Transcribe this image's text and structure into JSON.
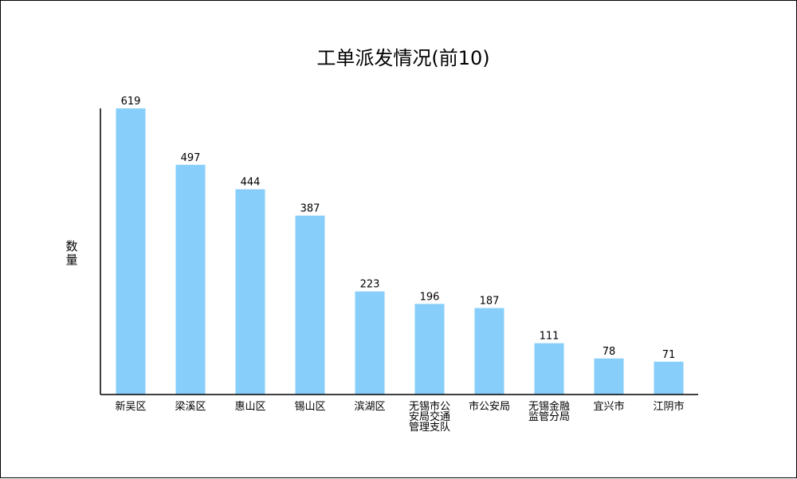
{
  "chart_data": {
    "type": "bar",
    "title": "工单派发情况(前10)",
    "ylabel": "数量",
    "xlabel": "",
    "categories": [
      "新吴区",
      "梁溪区",
      "惠山区",
      "锡山区",
      "滨湖区",
      "无锡市公安局交通管理支队",
      "市公安局",
      "无锡金融监管分局",
      "宜兴市",
      "江阴市"
    ],
    "category_lines": [
      [
        "新吴区"
      ],
      [
        "梁溪区"
      ],
      [
        "惠山区"
      ],
      [
        "锡山区"
      ],
      [
        "滨湖区"
      ],
      [
        "无锡市公",
        "安局交通",
        "管理支队"
      ],
      [
        "市公安局"
      ],
      [
        "无锡金融",
        "监管分局"
      ],
      [
        "宜兴市"
      ],
      [
        "江阴市"
      ]
    ],
    "values": [
      619,
      497,
      444,
      387,
      223,
      196,
      187,
      111,
      78,
      71
    ],
    "ylim": [
      0,
      619
    ],
    "grid": false,
    "legend": "none",
    "bar_color": "#87CEFA",
    "axis_color": "#000000"
  }
}
